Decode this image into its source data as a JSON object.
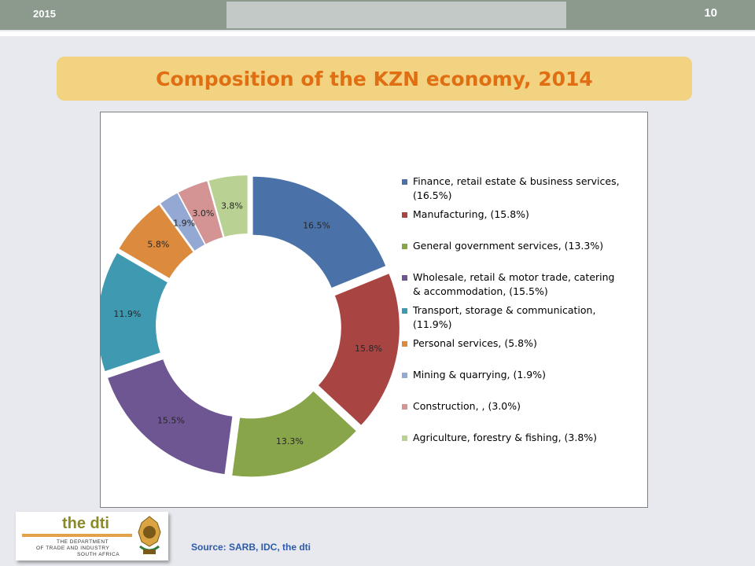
{
  "header": {
    "year": "2015",
    "page_number": "10"
  },
  "title": "Composition of the KZN economy, 2014",
  "source": "Source: SARB, IDC, the dti",
  "logo": {
    "brand": "the dti",
    "line1": "THE DEPARTMENT",
    "line2": "OF TRADE AND INDUSTRY",
    "line3": "SOUTH AFRICA"
  },
  "chart_data": {
    "type": "pie",
    "variant": "exploded-doughnut",
    "title": "",
    "legend_position": "right",
    "labels": [
      "Finance, retail estate & business services, (16.5%)",
      "Manufacturing, (15.8%)",
      "General government services, (13.3%)",
      "Wholesale, retail & motor trade, catering & accommodation, (15.5%)",
      "Transport, storage & communication, (11.9%)",
      "Personal services, (5.8%)",
      "Mining & quarrying, (1.9%)",
      "Construction, , (3.0%)",
      "Agriculture, forestry & fishing, (3.8%)"
    ],
    "legend_lines": [
      [
        "Finance, retail estate & business services,",
        "(16.5%)"
      ],
      [
        "Manufacturing, (15.8%)"
      ],
      [
        "General government services, (13.3%)"
      ],
      [
        "Wholesale, retail & motor trade, catering",
        "& accommodation, (15.5%)"
      ],
      [
        "Transport, storage & communication,",
        "(11.9%)"
      ],
      [
        "Personal services, (5.8%)"
      ],
      [
        "Mining & quarrying, (1.9%)"
      ],
      [
        "Construction, , (3.0%)"
      ],
      [
        "Agriculture, forestry & fishing, (3.8%)"
      ]
    ],
    "values": [
      16.5,
      15.8,
      13.3,
      15.5,
      11.9,
      5.8,
      1.9,
      3.0,
      3.8
    ],
    "data_labels": [
      "16.5%",
      "15.8%",
      "13.3%",
      "15.5%",
      "11.9%",
      "5.8%",
      "1.9%",
      "3.0%",
      "3.8%"
    ],
    "colors": [
      "#4a72a8",
      "#a84543",
      "#88a54a",
      "#6e5692",
      "#3f99b0",
      "#dc8a3e",
      "#93a9d3",
      "#d49493",
      "#b9d293"
    ]
  }
}
